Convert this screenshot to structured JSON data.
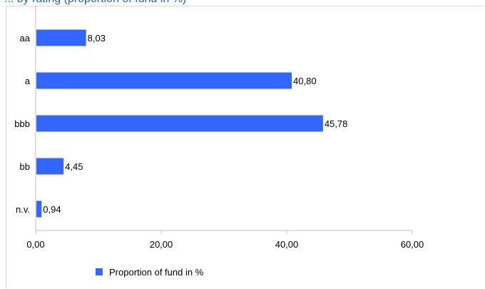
{
  "chart_data": {
    "type": "bar",
    "orientation": "horizontal",
    "title": "... by rating (proportion of fund in %)",
    "categories": [
      "aa",
      "a",
      "bbb",
      "bb",
      "n.v."
    ],
    "series": [
      {
        "name": "Proportion of fund in %",
        "values": [
          8.03,
          40.8,
          45.78,
          4.45,
          0.94
        ],
        "labels": [
          "8,03",
          "40,80",
          "45,78",
          "4,45",
          "0,94"
        ]
      }
    ],
    "xlim": [
      0,
      60
    ],
    "ticks": [
      0,
      20,
      40,
      60
    ],
    "tick_labels": [
      "0,00",
      "20,00",
      "40,00",
      "60,00"
    ],
    "grid": false,
    "legend_position": "bottom",
    "colors": {
      "bar": "#3366ff",
      "title": "#1f5fbf",
      "axis": "#bfbfbf",
      "text": "#000000"
    }
  }
}
